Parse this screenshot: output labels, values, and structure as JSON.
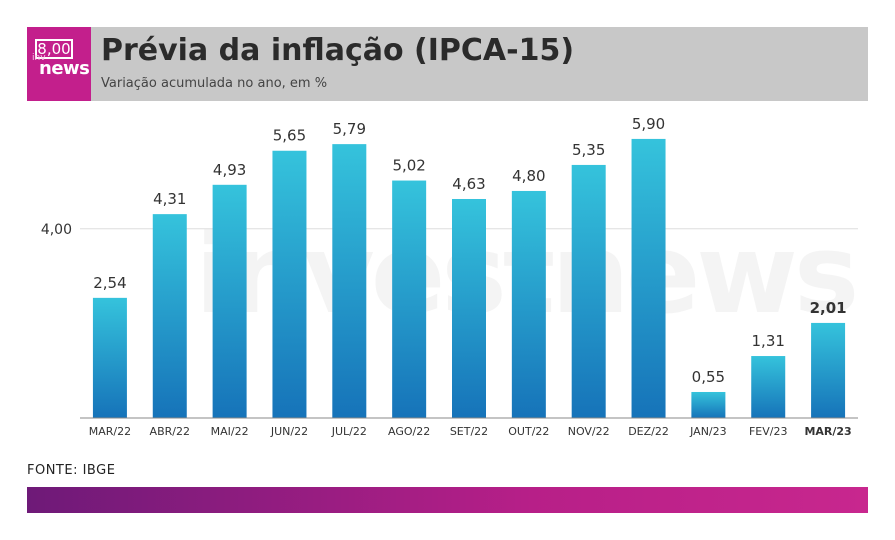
{
  "logo": {
    "top": "8,00",
    "small": "inv",
    "bottom": "news"
  },
  "header": {
    "title": "Prévia da inflação (IPCA-15)",
    "subtitle": "Variação acumulada no ano, em %"
  },
  "watermark": "investnews",
  "source": "FONTE: IBGE",
  "colors": {
    "bar_top": "#35c3dc",
    "bar_bottom": "#1673b9",
    "header_bg": "#c8c8c8",
    "logo_bg": "#c31f8c"
  },
  "chart_data": {
    "type": "bar",
    "title": "Prévia da inflação (IPCA-15)",
    "subtitle": "Variação acumulada no ano, em %",
    "categories": [
      "MAR/22",
      "ABR/22",
      "MAI/22",
      "JUN/22",
      "JUL/22",
      "AGO/22",
      "SET/22",
      "OUT/22",
      "NOV/22",
      "DEZ/22",
      "JAN/23",
      "FEV/23",
      "MAR/23"
    ],
    "values": [
      2.54,
      4.31,
      4.93,
      5.65,
      5.79,
      5.02,
      4.63,
      4.8,
      5.35,
      5.9,
      0.55,
      1.31,
      2.01
    ],
    "value_labels": [
      "2,54",
      "4,31",
      "4,93",
      "5,65",
      "5,79",
      "5,02",
      "4,63",
      "4,80",
      "5,35",
      "5,90",
      "0,55",
      "1,31",
      "2,01"
    ],
    "highlight_index": 12,
    "yticks": [
      4.0
    ],
    "ytick_labels": [
      "4,00"
    ],
    "ylim": [
      0,
      6.3
    ],
    "xlabel": "",
    "ylabel": "",
    "grid": true
  }
}
